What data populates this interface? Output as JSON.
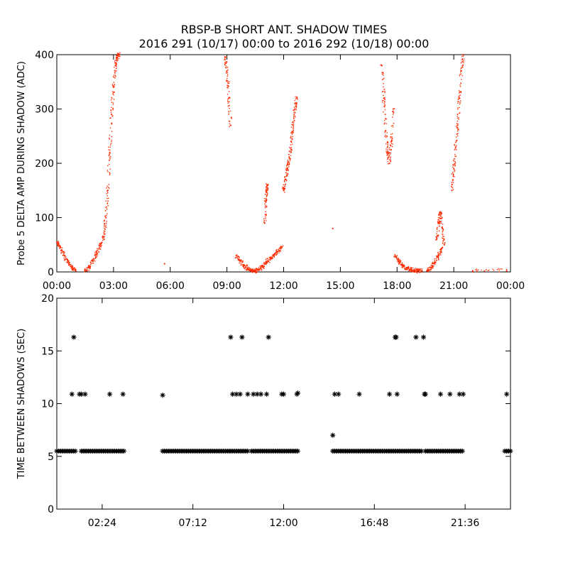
{
  "title_line1": "RBSP-B SHORT ANT. SHADOW TIMES",
  "title_line2": "2016 291 (10/17) 00:00 to 2016 292 (10/18) 00:00",
  "colors": {
    "series_top": "#ff2a00",
    "series_bottom": "#000000",
    "axes": "#000000"
  },
  "chart_data": [
    {
      "type": "scatter",
      "ylabel": "Probe 5 DELTA AMP DURING SHADOW (ADC)",
      "xlim": [
        0,
        24
      ],
      "ylim": [
        0,
        400
      ],
      "xticks": [
        "00:00",
        "03:00",
        "06:00",
        "09:00",
        "12:00",
        "15:00",
        "18:00",
        "21:00",
        "00:00"
      ],
      "yticks": [
        0,
        100,
        200,
        300,
        400
      ],
      "marker": "dot",
      "color": "#ff2a00",
      "segments": [
        {
          "x": [
            0.0,
            0.2,
            0.4,
            0.6,
            0.8,
            1.0
          ],
          "y": [
            55,
            45,
            30,
            18,
            8,
            2
          ]
        },
        {
          "x": [
            1.5,
            1.7,
            1.9,
            2.1,
            2.3,
            2.5
          ],
          "y": [
            2,
            8,
            20,
            32,
            48,
            65
          ]
        },
        {
          "x": [
            2.5,
            2.6,
            2.7,
            2.8,
            2.9,
            3.0,
            3.1,
            3.2,
            3.3
          ],
          "y": [
            70,
            100,
            150,
            220,
            290,
            340,
            380,
            395,
            400
          ]
        },
        {
          "x": [
            5.7
          ],
          "y": [
            15
          ]
        },
        {
          "x": [
            8.9,
            9.0,
            9.1,
            9.2
          ],
          "y": [
            395,
            370,
            320,
            270
          ]
        },
        {
          "x": [
            9.5,
            9.7,
            9.9,
            10.1,
            10.3,
            10.5,
            10.7
          ],
          "y": [
            30,
            20,
            12,
            6,
            3,
            2,
            3
          ]
        },
        {
          "x": [
            10.7,
            10.9,
            11.1,
            11.3,
            11.5,
            11.7,
            11.9
          ],
          "y": [
            5,
            10,
            18,
            25,
            32,
            38,
            45
          ]
        },
        {
          "x": [
            11.0,
            11.05,
            11.1,
            11.15
          ],
          "y": [
            90,
            130,
            150,
            160
          ]
        },
        {
          "x": [
            12.0,
            12.1,
            12.2,
            12.3,
            12.4,
            12.5,
            12.6,
            12.7
          ],
          "y": [
            150,
            170,
            190,
            210,
            240,
            270,
            300,
            320
          ]
        },
        {
          "x": [
            14.6
          ],
          "y": [
            80
          ]
        },
        {
          "x": [
            17.2,
            17.3,
            17.4,
            17.5,
            17.6,
            17.7,
            17.8
          ],
          "y": [
            380,
            320,
            260,
            220,
            200,
            240,
            300
          ]
        },
        {
          "x": [
            17.9,
            18.1,
            18.3,
            18.5,
            18.7,
            18.9,
            19.1,
            19.3
          ],
          "y": [
            30,
            20,
            12,
            8,
            5,
            3,
            2,
            2
          ]
        },
        {
          "x": [
            19.6,
            19.8,
            20.0,
            20.2,
            20.4
          ],
          "y": [
            3,
            8,
            18,
            30,
            45
          ]
        },
        {
          "x": [
            20.1,
            20.2,
            20.3,
            20.4,
            20.5
          ],
          "y": [
            60,
            90,
            110,
            80,
            50
          ]
        },
        {
          "x": [
            20.9,
            21.0,
            21.1,
            21.2,
            21.3,
            21.4,
            21.5
          ],
          "y": [
            150,
            190,
            230,
            270,
            320,
            370,
            400
          ]
        },
        {
          "x": [
            22.0,
            23.8
          ],
          "y": [
            2,
            2
          ]
        }
      ]
    },
    {
      "type": "scatter",
      "ylabel": "TIME BETWEEN SHADOWS (SEC)",
      "xlim": [
        0,
        24
      ],
      "ylim": [
        0,
        20
      ],
      "xticks": [
        "02:24",
        "07:12",
        "12:00",
        "16:48",
        "21:36"
      ],
      "yticks": [
        0,
        5,
        10,
        15,
        20
      ],
      "marker": "asterisk",
      "color": "#000000",
      "baseline_value": 5.5,
      "baseline_ranges": [
        [
          0.0,
          1.0
        ],
        [
          1.3,
          3.6
        ],
        [
          5.6,
          10.1
        ],
        [
          10.3,
          12.8
        ],
        [
          14.6,
          19.3
        ],
        [
          19.5,
          21.5
        ],
        [
          23.7,
          24.0
        ]
      ],
      "points": {
        "x": [
          0.9,
          0.8,
          1.2,
          1.3,
          1.5,
          2.8,
          3.5,
          5.6,
          9.2,
          9.3,
          9.8,
          9.5,
          9.7,
          10.1,
          10.4,
          10.6,
          10.8,
          11.2,
          11.1,
          11.9,
          12.0,
          12.7,
          12.75,
          14.6,
          14.7,
          14.9,
          16.0,
          17.6,
          17.9,
          18.0,
          17.95,
          19.0,
          19.4,
          19.5,
          19.45,
          20.3,
          20.8,
          21.3,
          21.5,
          23.8
        ],
        "y": [
          16.3,
          10.9,
          10.9,
          10.9,
          10.9,
          10.9,
          10.9,
          10.8,
          16.3,
          10.9,
          16.3,
          10.9,
          10.9,
          10.9,
          10.9,
          10.9,
          10.9,
          16.3,
          10.9,
          10.9,
          10.9,
          10.9,
          11.0,
          7.0,
          10.9,
          10.9,
          10.9,
          10.9,
          16.3,
          10.9,
          16.3,
          16.3,
          16.3,
          10.9,
          10.9,
          10.9,
          10.9,
          10.9,
          10.9,
          10.9
        ]
      }
    }
  ]
}
